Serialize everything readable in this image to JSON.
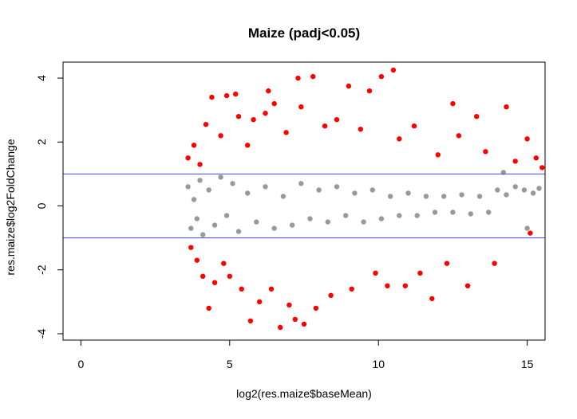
{
  "chart_data": {
    "type": "scatter",
    "title": "Maize (padj<0.05)",
    "xlabel": "log2(res.maize$baseMean)",
    "ylabel": "res.maize$log2FoldChange",
    "xlim": [
      -0.6,
      15.6
    ],
    "ylim": [
      -4.2,
      4.5
    ],
    "x_ticks": [
      0,
      5,
      10,
      15
    ],
    "y_ticks": [
      -4,
      -2,
      0,
      2,
      4
    ],
    "hlines": [
      1,
      -1
    ],
    "colors": {
      "significant": "#ff0000",
      "not_significant": "#999999",
      "hline": "#4444ff"
    },
    "series": [
      {
        "name": "not_significant",
        "color": "#999999",
        "points": [
          [
            3.6,
            0.6
          ],
          [
            3.7,
            -0.7
          ],
          [
            3.8,
            0.2
          ],
          [
            3.9,
            -0.4
          ],
          [
            4.0,
            0.8
          ],
          [
            4.1,
            -0.9
          ],
          [
            4.3,
            0.5
          ],
          [
            4.5,
            -0.6
          ],
          [
            4.7,
            0.9
          ],
          [
            4.9,
            -0.3
          ],
          [
            5.1,
            0.7
          ],
          [
            5.3,
            -0.8
          ],
          [
            5.6,
            0.4
          ],
          [
            5.9,
            -0.5
          ],
          [
            6.2,
            0.6
          ],
          [
            6.5,
            -0.7
          ],
          [
            6.8,
            0.3
          ],
          [
            7.1,
            -0.6
          ],
          [
            7.4,
            0.7
          ],
          [
            7.7,
            -0.4
          ],
          [
            8.0,
            0.5
          ],
          [
            8.3,
            -0.5
          ],
          [
            8.6,
            0.6
          ],
          [
            8.9,
            -0.3
          ],
          [
            9.2,
            0.4
          ],
          [
            9.5,
            -0.5
          ],
          [
            9.8,
            0.5
          ],
          [
            10.1,
            -0.4
          ],
          [
            10.4,
            0.3
          ],
          [
            10.7,
            -0.3
          ],
          [
            11.0,
            0.4
          ],
          [
            11.3,
            -0.3
          ],
          [
            11.6,
            0.3
          ],
          [
            11.9,
            -0.2
          ],
          [
            12.2,
            0.3
          ],
          [
            12.5,
            -0.2
          ],
          [
            12.8,
            0.35
          ],
          [
            13.1,
            -0.25
          ],
          [
            13.4,
            0.3
          ],
          [
            13.7,
            -0.2
          ],
          [
            14.0,
            0.5
          ],
          [
            14.3,
            0.35
          ],
          [
            14.6,
            0.6
          ],
          [
            14.9,
            0.5
          ],
          [
            15.2,
            0.4
          ],
          [
            15.4,
            0.55
          ],
          [
            14.2,
            1.05
          ],
          [
            15.0,
            -0.7
          ]
        ]
      },
      {
        "name": "significant",
        "color": "#ff0000",
        "points": [
          [
            3.6,
            1.5
          ],
          [
            3.7,
            -1.3
          ],
          [
            3.8,
            1.9
          ],
          [
            3.9,
            -1.7
          ],
          [
            4.0,
            1.3
          ],
          [
            4.1,
            -2.2
          ],
          [
            4.2,
            2.55
          ],
          [
            4.3,
            -3.2
          ],
          [
            4.4,
            3.4
          ],
          [
            4.5,
            -2.4
          ],
          [
            4.7,
            2.2
          ],
          [
            4.8,
            -1.8
          ],
          [
            4.9,
            3.45
          ],
          [
            5.0,
            -2.2
          ],
          [
            5.2,
            3.5
          ],
          [
            5.3,
            2.8
          ],
          [
            5.4,
            -2.6
          ],
          [
            5.6,
            1.9
          ],
          [
            5.7,
            -3.6
          ],
          [
            5.8,
            2.7
          ],
          [
            6.0,
            -3.0
          ],
          [
            6.2,
            2.9
          ],
          [
            6.3,
            3.6
          ],
          [
            6.4,
            -2.6
          ],
          [
            6.5,
            3.2
          ],
          [
            6.7,
            -3.8
          ],
          [
            6.9,
            2.3
          ],
          [
            7.0,
            -3.1
          ],
          [
            7.2,
            -3.55
          ],
          [
            7.3,
            4.0
          ],
          [
            7.4,
            3.1
          ],
          [
            7.5,
            -3.7
          ],
          [
            7.8,
            4.05
          ],
          [
            7.9,
            -3.2
          ],
          [
            8.2,
            2.5
          ],
          [
            8.4,
            -2.8
          ],
          [
            8.6,
            2.7
          ],
          [
            9.0,
            3.75
          ],
          [
            9.1,
            -2.6
          ],
          [
            9.4,
            2.4
          ],
          [
            9.7,
            3.6
          ],
          [
            9.9,
            -2.1
          ],
          [
            10.1,
            4.05
          ],
          [
            10.3,
            -2.5
          ],
          [
            10.5,
            4.25
          ],
          [
            10.7,
            2.1
          ],
          [
            10.9,
            -2.5
          ],
          [
            11.2,
            2.5
          ],
          [
            11.4,
            -2.1
          ],
          [
            11.8,
            -2.9
          ],
          [
            12.0,
            1.6
          ],
          [
            12.3,
            -1.8
          ],
          [
            12.5,
            3.2
          ],
          [
            12.7,
            2.2
          ],
          [
            13.0,
            -2.5
          ],
          [
            13.3,
            2.8
          ],
          [
            13.6,
            1.7
          ],
          [
            13.9,
            -1.8
          ],
          [
            14.3,
            3.1
          ],
          [
            14.6,
            1.4
          ],
          [
            15.0,
            2.1
          ],
          [
            15.3,
            1.5
          ],
          [
            15.5,
            1.2
          ],
          [
            15.1,
            -0.85
          ]
        ]
      }
    ]
  }
}
